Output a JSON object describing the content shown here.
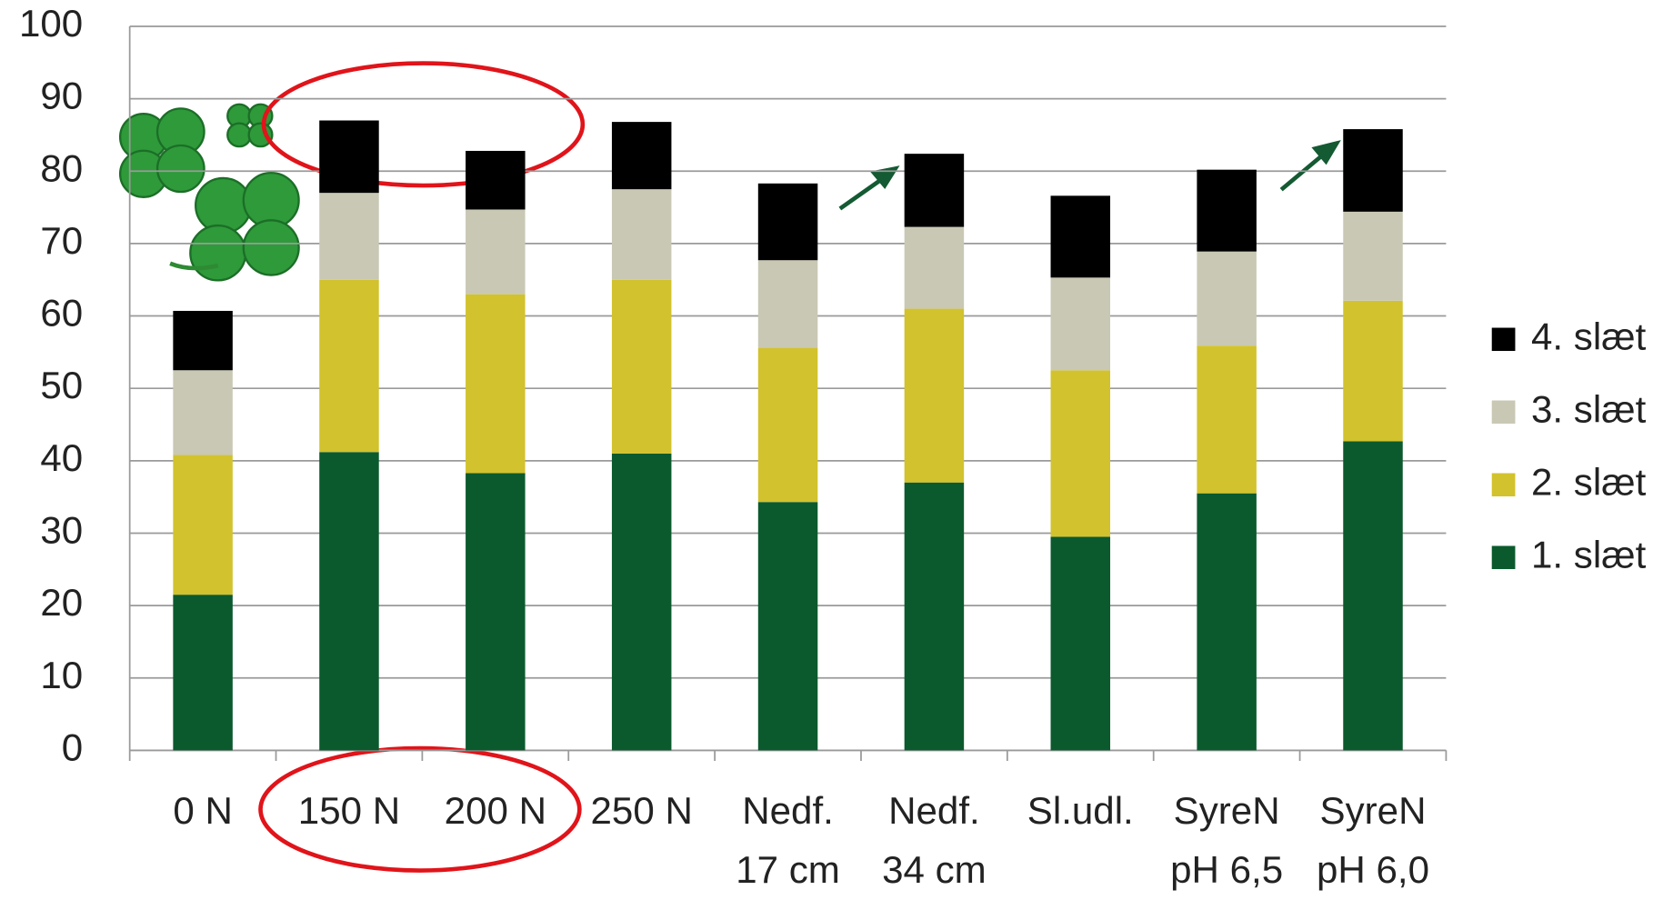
{
  "chart_data": {
    "type": "stacked_bar",
    "categories": [
      "0 N",
      "150 N",
      "200 N",
      "250 N",
      "Nedf.\n17 cm",
      "Nedf.\n34 cm",
      "Sl.udl.",
      "SyreN\npH 6,5",
      "SyreN\npH 6,0"
    ],
    "series": [
      {
        "name": "1. slæt",
        "color": "#0b5a2e",
        "values": [
          21.5,
          41.2,
          38.3,
          41,
          34.3,
          37,
          29.5,
          35.5,
          42.7
        ]
      },
      {
        "name": "2. slæt",
        "color": "#d2c22d",
        "values": [
          19.3,
          23.8,
          24.7,
          24,
          21.3,
          24,
          23,
          20.4,
          19.4
        ]
      },
      {
        "name": "3. slæt",
        "color": "#c9c8b4",
        "values": [
          11.7,
          12,
          11.7,
          12.5,
          12.1,
          11.3,
          12.8,
          13,
          12.3
        ]
      },
      {
        "name": "4. slæt",
        "color": "#000000",
        "values": [
          8.2,
          10,
          8.1,
          9.3,
          10.6,
          10.1,
          11.3,
          11.3,
          11.4
        ]
      }
    ],
    "ylim": [
      0,
      100
    ],
    "yticks": [
      0,
      10,
      20,
      30,
      40,
      50,
      60,
      70,
      80,
      90,
      100
    ],
    "grid": true,
    "legend": "right"
  }
}
